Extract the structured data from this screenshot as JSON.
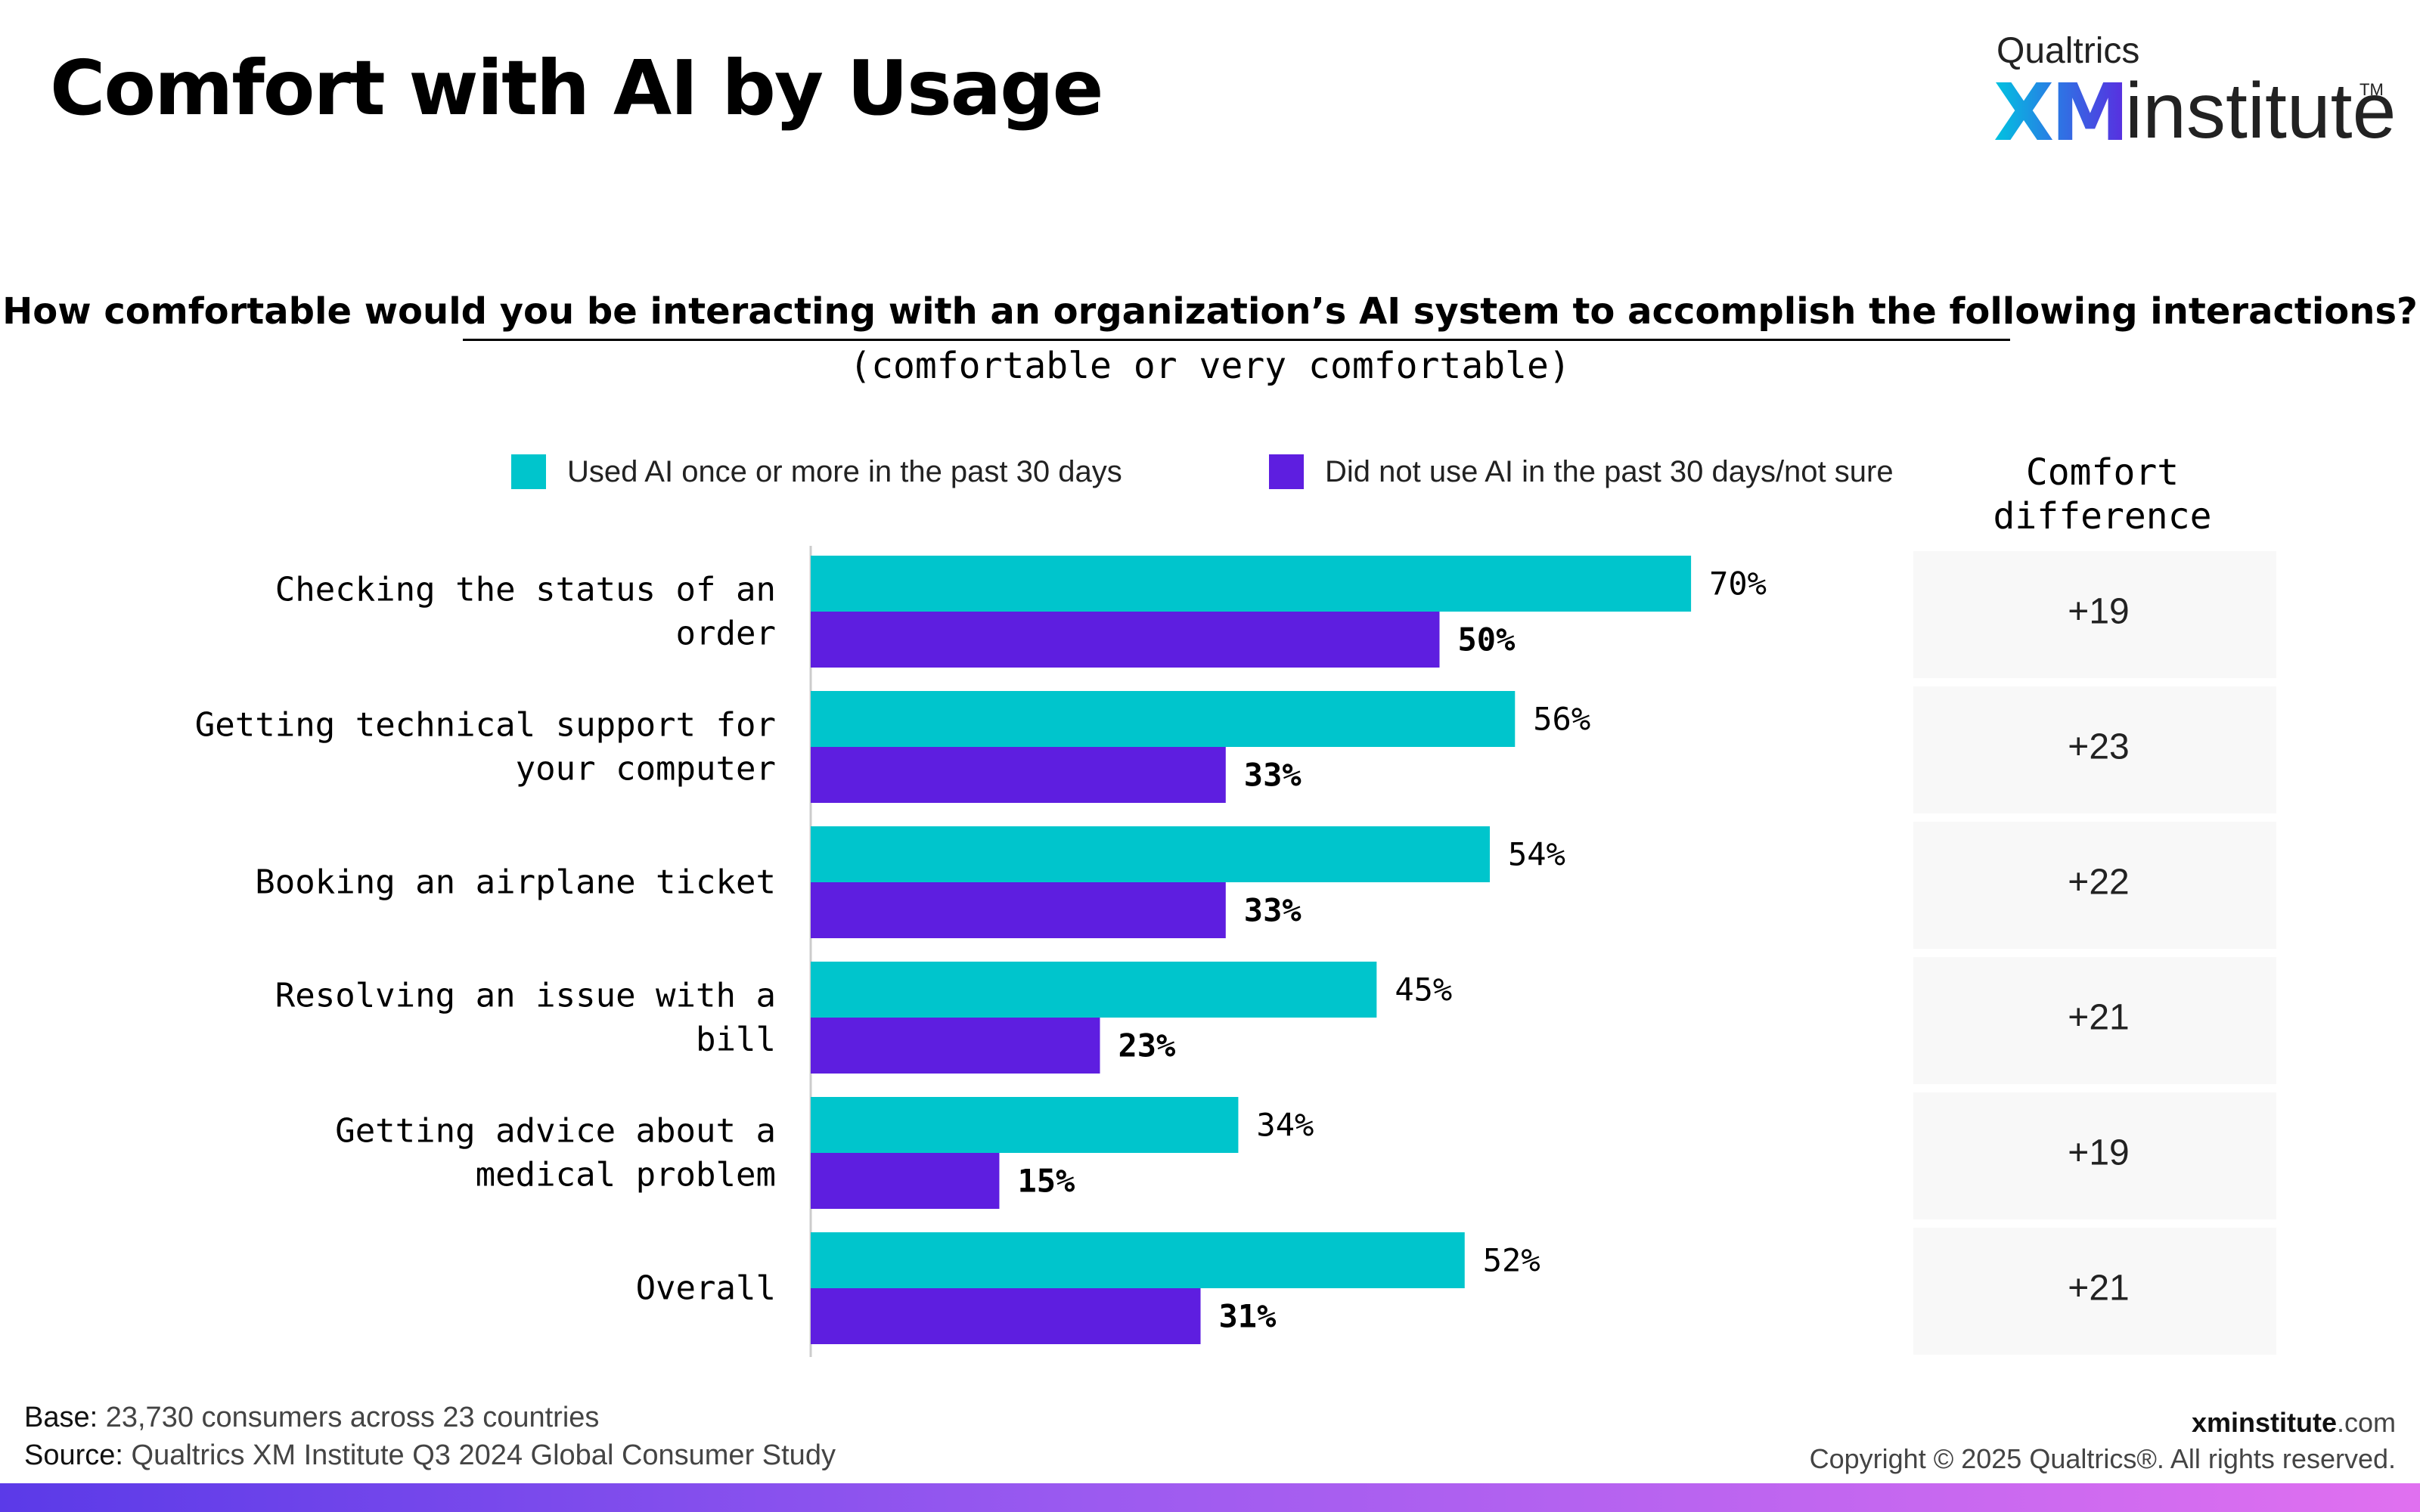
{
  "page": {
    "title": "Comfort with AI by Usage",
    "question": "How comfortable would you be interacting with an organization’s AI system to accomplish the following interactions?",
    "subquestion": "(comfortable or very comfortable)",
    "difference_header_line1": "Comfort",
    "difference_header_line2": "difference"
  },
  "logo": {
    "top": "Qualtrics",
    "xm": "XM",
    "word": "institute",
    "tm": "TM"
  },
  "footer": {
    "base_label": "Base:",
    "base_text": " 23,730 consumers across 23 countries",
    "source_label": "Source:",
    "source_text": " Qualtrics XM Institute Q3 2024 Global Consumer Study",
    "site_bold": "xminstitute",
    "site_rest": ".com",
    "copyright": "Copyright © 2025 Qualtrics®. All rights reserved."
  },
  "colors": {
    "used": "#00c5cc",
    "not_used": "#5e1ee0",
    "diff_bg": "#f8f8f8"
  },
  "chart_data": {
    "type": "bar",
    "orientation": "horizontal",
    "categories": [
      [
        "Checking the status of an",
        "order"
      ],
      [
        "Getting technical support for",
        "your computer"
      ],
      [
        "Booking an airplane ticket"
      ],
      [
        "Resolving an issue with a",
        "bill"
      ],
      [
        "Getting advice about a",
        "medical problem"
      ],
      [
        "Overall"
      ]
    ],
    "series": [
      {
        "name": "Used AI once or more in the past 30 days",
        "values": [
          70,
          56,
          54,
          45,
          34,
          52
        ],
        "labels": [
          "70%",
          "56%",
          "54%",
          "45%",
          "34%",
          "52%"
        ]
      },
      {
        "name": "Did not use AI in the past 30 days/not sure",
        "values": [
          50,
          33,
          33,
          23,
          15,
          31
        ],
        "labels": [
          "50%",
          "33%",
          "33%",
          "23%",
          "15%",
          "31%"
        ]
      }
    ],
    "comfort_difference": [
      "+19",
      "+23",
      "+22",
      "+21",
      "+19",
      "+21"
    ],
    "xlim": [
      0,
      100
    ],
    "legend_position": "top",
    "grid": false
  }
}
